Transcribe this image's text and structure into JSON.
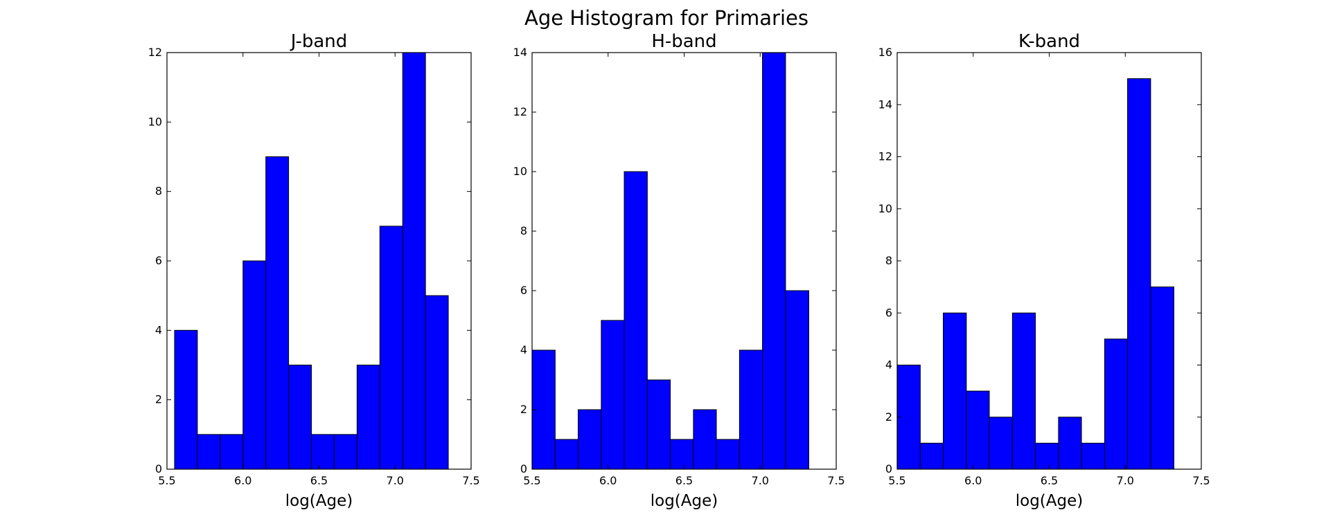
{
  "figure": {
    "suptitle": "Age Histogram for Primaries",
    "bar_color": "#0000ff",
    "edge_color": "#000000"
  },
  "chart_data": [
    {
      "type": "bar",
      "title": "J-band",
      "xlabel": "log(Age)",
      "ylabel": "",
      "xlim": [
        5.5,
        7.5
      ],
      "ylim": [
        0,
        12
      ],
      "xticks": [
        "5.5",
        "6.0",
        "6.5",
        "7.0",
        "7.5"
      ],
      "yticks": [
        "0",
        "2",
        "4",
        "6",
        "8",
        "10",
        "12"
      ],
      "bin_edges": [
        5.55,
        5.7,
        5.85,
        6.0,
        6.15,
        6.3,
        6.45,
        6.6,
        6.75,
        6.9,
        7.05,
        7.2,
        7.35
      ],
      "values": [
        4,
        1,
        1,
        6,
        9,
        3,
        1,
        1,
        3,
        7,
        12,
        5
      ]
    },
    {
      "type": "bar",
      "title": "H-band",
      "xlabel": "log(Age)",
      "ylabel": "",
      "xlim": [
        5.5,
        7.5
      ],
      "ylim": [
        0,
        14
      ],
      "xticks": [
        "5.5",
        "6.0",
        "6.5",
        "7.0",
        "7.5"
      ],
      "yticks": [
        "0",
        "2",
        "4",
        "6",
        "8",
        "10",
        "12",
        "14"
      ],
      "bin_edges": [
        5.5,
        5.652,
        5.803,
        5.955,
        6.106,
        6.258,
        6.409,
        6.561,
        6.712,
        6.864,
        7.015,
        7.167,
        7.32
      ],
      "values": [
        4,
        1,
        2,
        5,
        10,
        3,
        1,
        2,
        1,
        4,
        14,
        6
      ]
    },
    {
      "type": "bar",
      "title": "K-band",
      "xlabel": "log(Age)",
      "ylabel": "",
      "xlim": [
        5.5,
        7.5
      ],
      "ylim": [
        0,
        16
      ],
      "xticks": [
        "5.5",
        "6.0",
        "6.5",
        "7.0",
        "7.5"
      ],
      "yticks": [
        "0",
        "2",
        "4",
        "6",
        "8",
        "10",
        "12",
        "14",
        "16"
      ],
      "bin_edges": [
        5.5,
        5.652,
        5.803,
        5.955,
        6.106,
        6.258,
        6.409,
        6.561,
        6.712,
        6.864,
        7.015,
        7.167,
        7.32
      ],
      "values": [
        4,
        1,
        6,
        3,
        2,
        6,
        1,
        2,
        1,
        5,
        15,
        7
      ]
    }
  ]
}
